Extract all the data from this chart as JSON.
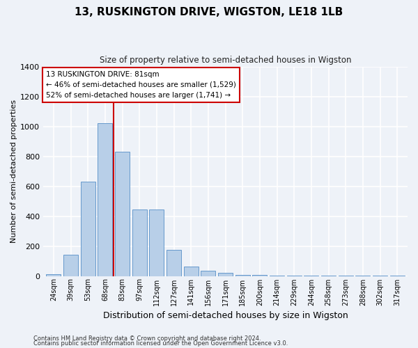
{
  "title": "13, RUSKINGTON DRIVE, WIGSTON, LE18 1LB",
  "subtitle": "Size of property relative to semi-detached houses in Wigston",
  "xlabel": "Distribution of semi-detached houses by size in Wigston",
  "ylabel": "Number of semi-detached properties",
  "footnote1": "Contains HM Land Registry data © Crown copyright and database right 2024.",
  "footnote2": "Contains public sector information licensed under the Open Government Licence v3.0.",
  "annotation_line1": "13 RUSKINGTON DRIVE: 81sqm",
  "annotation_line2": "← 46% of semi-detached houses are smaller (1,529)",
  "annotation_line3": "52% of semi-detached houses are larger (1,741) →",
  "property_size_sqm": 81,
  "categories": [
    "24sqm",
    "39sqm",
    "53sqm",
    "68sqm",
    "83sqm",
    "97sqm",
    "112sqm",
    "127sqm",
    "141sqm",
    "156sqm",
    "171sqm",
    "185sqm",
    "200sqm",
    "214sqm",
    "229sqm",
    "244sqm",
    "258sqm",
    "273sqm",
    "288sqm",
    "302sqm",
    "317sqm"
  ],
  "values": [
    10,
    140,
    630,
    1020,
    830,
    445,
    445,
    175,
    65,
    35,
    20,
    5,
    5,
    2,
    2,
    2,
    1,
    1,
    1,
    1,
    1
  ],
  "bar_color": "#b8cfe8",
  "bar_edge_color": "#6699cc",
  "highlight_color": "#cc0000",
  "background_color": "#eef2f8",
  "grid_color": "#ffffff",
  "annotation_box_color": "#ffffff",
  "annotation_box_edge": "#cc0000",
  "ylim": [
    0,
    1400
  ],
  "yticks": [
    0,
    200,
    400,
    600,
    800,
    1000,
    1200,
    1400
  ]
}
